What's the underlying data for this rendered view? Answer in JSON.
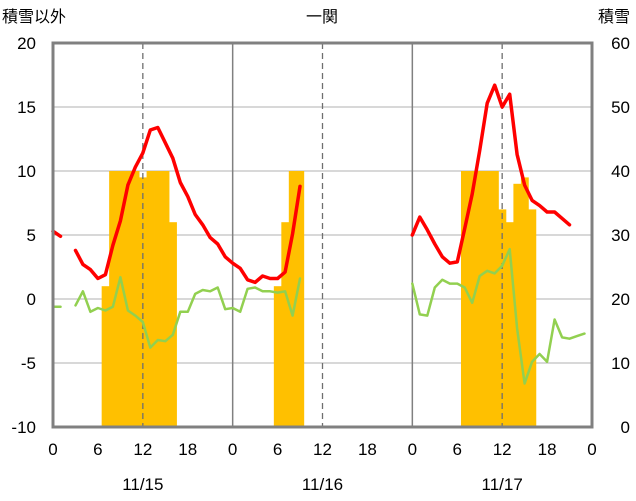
{
  "chart_data": {
    "type": "bar+line",
    "title": "一関",
    "y_left_label": "積雪以外",
    "y_right_label": "積雪",
    "y_left_ticks": [
      "20",
      "15",
      "10",
      "5",
      "0",
      "-5",
      "-10"
    ],
    "y_right_ticks": [
      "60",
      "50",
      "40",
      "30",
      "20",
      "10",
      "0"
    ],
    "ylim_left": [
      -10,
      20
    ],
    "ylim_right": [
      0,
      60
    ],
    "x_ticks": [
      "0",
      "6",
      "12",
      "18",
      "0",
      "6",
      "12",
      "18",
      "0",
      "6",
      "12",
      "18",
      "0"
    ],
    "x_range_hours": [
      0,
      72
    ],
    "date_labels": [
      "11/15",
      "11/16",
      "11/17"
    ],
    "day_divider_hours": [
      24,
      48
    ],
    "noon_marker_hours": [
      12,
      36,
      60
    ],
    "grid": "horizontal",
    "colors": {
      "snow_depth": "#ffc000",
      "temperature": "#ff0000",
      "secondary": "#92d050",
      "baseline": "#7030a0",
      "frame": "#808080"
    },
    "series": [
      {
        "role": "snow_depth",
        "axis": "right",
        "render": "bar",
        "points": [
          [
            6,
            0
          ],
          [
            7,
            22
          ],
          [
            8,
            40
          ],
          [
            9,
            40
          ],
          [
            10,
            40
          ],
          [
            11,
            40
          ],
          [
            12,
            39
          ],
          [
            13,
            40
          ],
          [
            14,
            40
          ],
          [
            15,
            40
          ],
          [
            16,
            32
          ],
          [
            30,
            22
          ],
          [
            31,
            32
          ],
          [
            32,
            40
          ],
          [
            33,
            40
          ],
          [
            55,
            40
          ],
          [
            56,
            40
          ],
          [
            57,
            40
          ],
          [
            58,
            40
          ],
          [
            59,
            40
          ],
          [
            60,
            34
          ],
          [
            61,
            32
          ],
          [
            62,
            38
          ],
          [
            63,
            39
          ],
          [
            64,
            34
          ]
        ]
      },
      {
        "role": "temperature",
        "axis": "left",
        "render": "line",
        "segments": [
          [
            [
              0,
              5.3
            ],
            [
              1,
              4.9
            ]
          ],
          [
            [
              3,
              3.8
            ],
            [
              4,
              2.7
            ],
            [
              5,
              2.3
            ],
            [
              6,
              1.6
            ],
            [
              7,
              1.9
            ],
            [
              8,
              4.2
            ],
            [
              9,
              6.1
            ],
            [
              10,
              8.9
            ],
            [
              11,
              10.3
            ],
            [
              12,
              11.4
            ],
            [
              13,
              13.2
            ],
            [
              14,
              13.4
            ],
            [
              15,
              12.2
            ],
            [
              16,
              11.0
            ],
            [
              17,
              9.1
            ],
            [
              18,
              8.0
            ],
            [
              19,
              6.6
            ],
            [
              20,
              5.8
            ],
            [
              21,
              4.8
            ],
            [
              22,
              4.3
            ],
            [
              23,
              3.3
            ],
            [
              24,
              2.8
            ],
            [
              25,
              2.4
            ],
            [
              26,
              1.5
            ],
            [
              27,
              1.3
            ],
            [
              28,
              1.8
            ],
            [
              29,
              1.6
            ],
            [
              30,
              1.6
            ],
            [
              31,
              2.1
            ],
            [
              32,
              5.1
            ],
            [
              33,
              8.8
            ]
          ],
          [
            [
              48,
              5.0
            ],
            [
              49,
              6.4
            ],
            [
              50,
              5.4
            ],
            [
              51,
              4.3
            ],
            [
              52,
              3.3
            ],
            [
              53,
              2.8
            ],
            [
              54,
              2.9
            ],
            [
              55,
              5.5
            ],
            [
              56,
              8.2
            ],
            [
              57,
              11.6
            ],
            [
              58,
              15.3
            ],
            [
              59,
              16.7
            ],
            [
              60,
              15.0
            ],
            [
              61,
              16.0
            ],
            [
              62,
              11.3
            ],
            [
              63,
              8.9
            ],
            [
              64,
              7.7
            ],
            [
              65,
              7.3
            ],
            [
              66,
              6.8
            ],
            [
              67,
              6.8
            ],
            [
              68,
              6.3
            ],
            [
              69,
              5.8
            ]
          ]
        ]
      },
      {
        "role": "secondary",
        "axis": "left",
        "render": "line",
        "segments": [
          [
            [
              0,
              -0.6
            ],
            [
              1,
              -0.6
            ]
          ],
          [
            [
              3,
              -0.5
            ],
            [
              4,
              0.6
            ],
            [
              5,
              -1.0
            ],
            [
              6,
              -0.7
            ],
            [
              7,
              -0.9
            ],
            [
              8,
              -0.6
            ],
            [
              9,
              1.7
            ],
            [
              10,
              -0.9
            ],
            [
              11,
              -1.3
            ],
            [
              12,
              -1.8
            ],
            [
              13,
              -3.8
            ],
            [
              14,
              -3.2
            ],
            [
              15,
              -3.3
            ],
            [
              16,
              -2.8
            ],
            [
              17,
              -1.0
            ],
            [
              18,
              -1.0
            ],
            [
              19,
              0.4
            ],
            [
              20,
              0.7
            ],
            [
              21,
              0.6
            ],
            [
              22,
              0.9
            ],
            [
              23,
              -0.8
            ],
            [
              24,
              -0.7
            ],
            [
              25,
              -1.0
            ],
            [
              26,
              0.8
            ],
            [
              27,
              0.9
            ],
            [
              28,
              0.6
            ],
            [
              29,
              0.6
            ],
            [
              30,
              0.5
            ],
            [
              31,
              0.6
            ],
            [
              32,
              -1.3
            ],
            [
              33,
              1.6
            ]
          ],
          [
            [
              48,
              1.2
            ],
            [
              49,
              -1.2
            ],
            [
              50,
              -1.3
            ],
            [
              51,
              0.9
            ],
            [
              52,
              1.5
            ],
            [
              53,
              1.2
            ],
            [
              54,
              1.2
            ],
            [
              55,
              0.9
            ],
            [
              56,
              -0.3
            ],
            [
              57,
              1.8
            ],
            [
              58,
              2.2
            ],
            [
              59,
              2.0
            ],
            [
              60,
              2.6
            ],
            [
              61,
              3.9
            ],
            [
              62,
              -2.3
            ],
            [
              63,
              -6.6
            ],
            [
              64,
              -4.9
            ],
            [
              65,
              -4.3
            ],
            [
              66,
              -4.9
            ],
            [
              67,
              -1.6
            ],
            [
              68,
              -3.0
            ],
            [
              69,
              -3.1
            ],
            [
              70,
              -2.9
            ],
            [
              71,
              -2.7
            ]
          ]
        ]
      },
      {
        "role": "baseline",
        "axis": "left",
        "render": "line",
        "segments": [
          [
            [
              0,
              -10
            ],
            [
              33,
              -10
            ]
          ],
          [
            [
              48,
              -10
            ],
            [
              71,
              -10
            ]
          ]
        ]
      }
    ]
  }
}
